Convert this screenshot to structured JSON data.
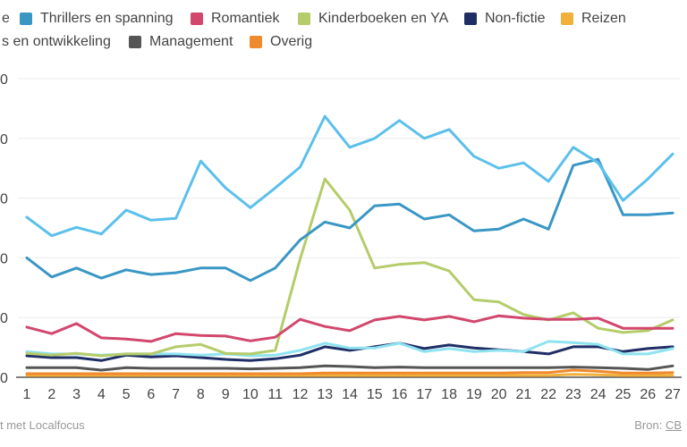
{
  "legend": [
    {
      "label": "e",
      "color": "#5bc0eb"
    },
    {
      "label": "Thrillers en spanning",
      "color": "#3a97c4"
    },
    {
      "label": "Romantiek",
      "color": "#d2476d"
    },
    {
      "label": "Kinderboeken en YA",
      "color": "#b5cc6a"
    },
    {
      "label": "Non-fictie",
      "color": "#1f2f66"
    },
    {
      "label": "Reizen",
      "color": "#f0b03a"
    },
    {
      "label": "s en ontwikkeling",
      "color": "#8fe3f0"
    },
    {
      "label": "Management",
      "color": "#555555"
    },
    {
      "label": "Overig",
      "color": "#f08a2e"
    }
  ],
  "footer": {
    "left": "t met Localfocus",
    "source_prefix": "Bron: ",
    "source_link": "CB"
  },
  "chart_data": {
    "type": "line",
    "x": [
      1,
      2,
      3,
      4,
      5,
      6,
      7,
      8,
      9,
      10,
      11,
      12,
      13,
      14,
      15,
      16,
      17,
      18,
      19,
      20,
      21,
      22,
      23,
      24,
      25,
      26,
      27
    ],
    "ylim": [
      0,
      500
    ],
    "y_tick_labels": [
      "0",
      "0",
      "0",
      "0",
      "0",
      "0"
    ],
    "grid": true,
    "legend_placement": "top",
    "series": [
      {
        "name": "e",
        "color": "#5bc0eb",
        "values": [
          268,
          237,
          251,
          240,
          280,
          263,
          266,
          362,
          317,
          284,
          317,
          352,
          437,
          385,
          400,
          430,
          400,
          415,
          370,
          350,
          359,
          328,
          385,
          359,
          296,
          332,
          374
        ]
      },
      {
        "name": "Thrillers en spanning",
        "color": "#3a97c4",
        "values": [
          200,
          168,
          183,
          166,
          180,
          172,
          175,
          183,
          183,
          162,
          183,
          230,
          260,
          250,
          287,
          290,
          265,
          272,
          245,
          248,
          265,
          248,
          355,
          365,
          272,
          272,
          275
        ]
      },
      {
        "name": "Romantiek",
        "color": "#d2476d",
        "values": [
          84,
          73,
          90,
          66,
          64,
          60,
          73,
          70,
          69,
          61,
          67,
          97,
          85,
          78,
          96,
          102,
          96,
          102,
          93,
          103,
          99,
          97,
          97,
          99,
          82,
          82,
          82
        ]
      },
      {
        "name": "Kinderboeken en YA",
        "color": "#b5cc6a",
        "values": [
          40,
          37,
          40,
          36,
          39,
          39,
          51,
          55,
          40,
          39,
          45,
          198,
          332,
          280,
          183,
          189,
          192,
          178,
          130,
          126,
          105,
          96,
          108,
          82,
          75,
          78,
          96
        ]
      },
      {
        "name": "s en ontwikkeling",
        "color": "#8fe3f0",
        "values": [
          43,
          39,
          39,
          37,
          39,
          39,
          39,
          37,
          39,
          36,
          37,
          45,
          57,
          49,
          49,
          57,
          43,
          48,
          43,
          45,
          43,
          60,
          58,
          55,
          39,
          39,
          48
        ]
      },
      {
        "name": "Non-fictie",
        "color": "#1f2f66",
        "values": [
          36,
          33,
          33,
          28,
          37,
          34,
          36,
          33,
          30,
          28,
          31,
          37,
          51,
          45,
          51,
          57,
          48,
          54,
          49,
          46,
          43,
          39,
          51,
          51,
          43,
          48,
          51
        ]
      },
      {
        "name": "Management",
        "color": "#555555",
        "values": [
          16,
          16,
          16,
          12,
          16,
          15,
          15,
          15,
          15,
          14,
          15,
          16,
          19,
          18,
          16,
          17,
          16,
          16,
          16,
          16,
          16,
          16,
          17,
          16,
          15,
          13,
          19
        ]
      },
      {
        "name": "Overig",
        "color": "#f08a2e",
        "values": [
          6,
          6,
          6,
          6,
          6,
          6,
          6,
          6,
          6,
          6,
          6,
          6,
          7,
          7,
          7,
          7,
          7,
          7,
          7,
          7,
          8,
          8,
          12,
          10,
          7,
          7,
          8
        ]
      },
      {
        "name": "Reizen",
        "color": "#f0b03a",
        "values": [
          3,
          3,
          3,
          3,
          3,
          3,
          3,
          3,
          3,
          3,
          3,
          3,
          3,
          3,
          3,
          3,
          3,
          3,
          3,
          3,
          3,
          3,
          5,
          4,
          3,
          3,
          3
        ]
      }
    ]
  }
}
